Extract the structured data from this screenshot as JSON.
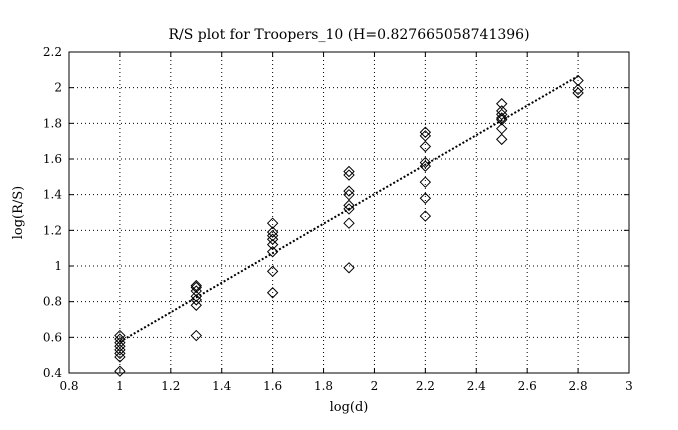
{
  "chart_data": {
    "type": "scatter",
    "title": "R/S plot for Troopers_10 (H=0.827665058741396)",
    "xlabel": "log(d)",
    "ylabel": "log(R/S)",
    "xlim": [
      0.8,
      3.0
    ],
    "ylim": [
      0.4,
      2.2
    ],
    "xticks": [
      0.8,
      1.0,
      1.2,
      1.4,
      1.6,
      1.8,
      2.0,
      2.2,
      2.4,
      2.6,
      2.8,
      3.0
    ],
    "xtick_labels": [
      "0.8",
      "1",
      "1.2",
      "1.4",
      "1.6",
      "1.8",
      "2",
      "2.2",
      "2.4",
      "2.6",
      "2.8",
      "3"
    ],
    "yticks": [
      0.4,
      0.6,
      0.8,
      1.0,
      1.2,
      1.4,
      1.6,
      1.8,
      2.0,
      2.2
    ],
    "ytick_labels": [
      "0.4",
      "0.6",
      "0.8",
      "1",
      "1.2",
      "1.4",
      "1.6",
      "1.8",
      "2",
      "2.2"
    ],
    "grid": true,
    "marker": "diamond",
    "points": [
      {
        "x": 1.0,
        "y": 0.41
      },
      {
        "x": 1.0,
        "y": 0.49
      },
      {
        "x": 1.0,
        "y": 0.51
      },
      {
        "x": 1.0,
        "y": 0.53
      },
      {
        "x": 1.0,
        "y": 0.55
      },
      {
        "x": 1.0,
        "y": 0.57
      },
      {
        "x": 1.0,
        "y": 0.59
      },
      {
        "x": 1.0,
        "y": 0.61
      },
      {
        "x": 1.3,
        "y": 0.61
      },
      {
        "x": 1.3,
        "y": 0.78
      },
      {
        "x": 1.3,
        "y": 0.81
      },
      {
        "x": 1.3,
        "y": 0.83
      },
      {
        "x": 1.3,
        "y": 0.86
      },
      {
        "x": 1.3,
        "y": 0.88
      },
      {
        "x": 1.3,
        "y": 0.89
      },
      {
        "x": 1.6,
        "y": 0.85
      },
      {
        "x": 1.6,
        "y": 0.97
      },
      {
        "x": 1.6,
        "y": 1.08
      },
      {
        "x": 1.6,
        "y": 1.12
      },
      {
        "x": 1.6,
        "y": 1.15
      },
      {
        "x": 1.6,
        "y": 1.17
      },
      {
        "x": 1.6,
        "y": 1.19
      },
      {
        "x": 1.6,
        "y": 1.24
      },
      {
        "x": 1.9,
        "y": 0.99
      },
      {
        "x": 1.9,
        "y": 1.24
      },
      {
        "x": 1.9,
        "y": 1.32
      },
      {
        "x": 1.9,
        "y": 1.34
      },
      {
        "x": 1.9,
        "y": 1.4
      },
      {
        "x": 1.9,
        "y": 1.42
      },
      {
        "x": 1.9,
        "y": 1.51
      },
      {
        "x": 1.9,
        "y": 1.53
      },
      {
        "x": 2.2,
        "y": 1.28
      },
      {
        "x": 2.2,
        "y": 1.38
      },
      {
        "x": 2.2,
        "y": 1.47
      },
      {
        "x": 2.2,
        "y": 1.56
      },
      {
        "x": 2.2,
        "y": 1.58
      },
      {
        "x": 2.2,
        "y": 1.67
      },
      {
        "x": 2.2,
        "y": 1.73
      },
      {
        "x": 2.2,
        "y": 1.75
      },
      {
        "x": 2.5,
        "y": 1.71
      },
      {
        "x": 2.5,
        "y": 1.77
      },
      {
        "x": 2.5,
        "y": 1.82
      },
      {
        "x": 2.5,
        "y": 1.83
      },
      {
        "x": 2.5,
        "y": 1.85
      },
      {
        "x": 2.5,
        "y": 1.87
      },
      {
        "x": 2.5,
        "y": 1.91
      },
      {
        "x": 2.8,
        "y": 1.97
      },
      {
        "x": 2.8,
        "y": 1.99
      },
      {
        "x": 2.8,
        "y": 2.04
      }
    ],
    "fit_line": {
      "x": [
        1.0,
        2.8
      ],
      "y": [
        0.575,
        2.065
      ]
    }
  }
}
